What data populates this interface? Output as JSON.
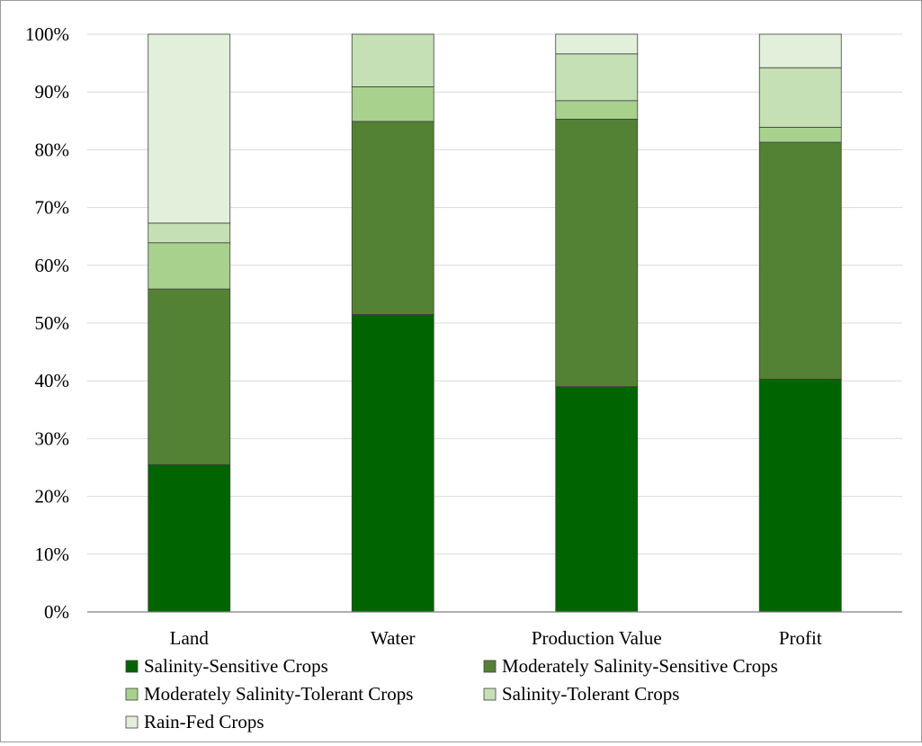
{
  "chart_data": {
    "type": "bar",
    "stacked": true,
    "percent": true,
    "title": "",
    "xlabel": "",
    "ylabel": "",
    "ylim": [
      0,
      100
    ],
    "y_ticks": [
      "0%",
      "10%",
      "20%",
      "30%",
      "40%",
      "50%",
      "60%",
      "70%",
      "80%",
      "90%",
      "100%"
    ],
    "grid": true,
    "legend_position": "bottom",
    "categories": [
      "Land",
      "Water",
      "Production Value",
      "Profit"
    ],
    "series": [
      {
        "name": "Salinity-Sensitive Crops",
        "color": "#006400",
        "values": [
          25.5,
          51.5,
          39.0,
          40.3
        ]
      },
      {
        "name": "Moderately Salinity-Sensitive Crops",
        "color": "#548235",
        "values": [
          30.4,
          33.4,
          46.3,
          41.0
        ]
      },
      {
        "name": "Moderately Salinity-Tolerant Crops",
        "color": "#a9d18e",
        "values": [
          8.0,
          6.0,
          3.2,
          2.6
        ]
      },
      {
        "name": "Salinity-Tolerant Crops",
        "color": "#c5e0b4",
        "values": [
          3.4,
          9.1,
          8.1,
          10.3
        ]
      },
      {
        "name": "Rain-Fed Crops",
        "color": "#e2efda",
        "values": [
          32.7,
          0.0,
          3.4,
          5.8
        ]
      }
    ]
  }
}
